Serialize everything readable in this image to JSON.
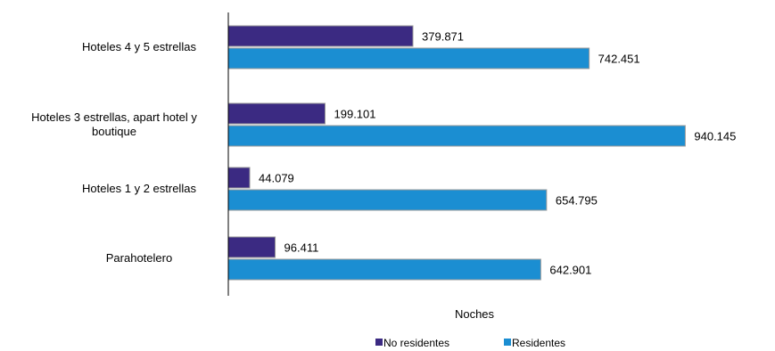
{
  "chart_data": {
    "type": "bar",
    "orientation": "horizontal",
    "categories": [
      "Hoteles 4 y 5 estrellas",
      "Hoteles 3 estrellas, apart hotel y boutique",
      "Hoteles 1 y 2 estrellas",
      "Parahotelero"
    ],
    "category_label_lines": [
      [
        "Hoteles 4 y 5 estrellas"
      ],
      [
        "Hoteles 3 estrellas, apart hotel y",
        "boutique"
      ],
      [
        "Hoteles 1 y 2 estrellas"
      ],
      [
        "Parahotelero"
      ]
    ],
    "series": [
      {
        "name": "No residentes",
        "color": "#3b2a82",
        "values": [
          379871,
          199101,
          44079,
          96411
        ],
        "value_labels": [
          "379.871",
          "199.101",
          "44.079",
          "96.411"
        ]
      },
      {
        "name": "Residentes",
        "color": "#1b8ed2",
        "values": [
          742451,
          940145,
          654795,
          642901
        ],
        "value_labels": [
          "742.451",
          "940.145",
          "654.795",
          "642.901"
        ]
      }
    ],
    "xlabel": "Noches",
    "ylabel": "",
    "xlim": [
      0,
      1000000
    ],
    "grid": false,
    "legend_position": "bottom"
  }
}
